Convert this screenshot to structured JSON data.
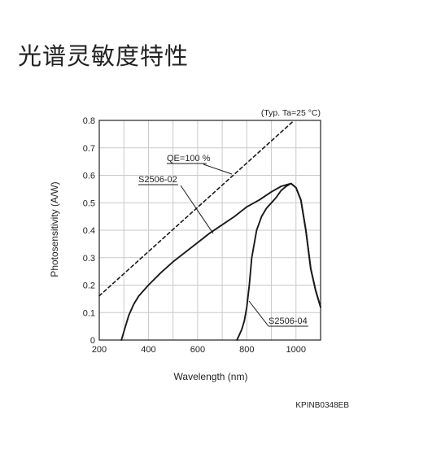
{
  "page": {
    "title": "光谱灵敏度特性",
    "figure_code": "KPINB0348EB"
  },
  "chart_data": {
    "type": "line",
    "title": "",
    "condition": "(Typ. Ta=25 °C)",
    "xlabel": "Wavelength (nm)",
    "ylabel": "Photosensitivity (A/W)",
    "xlim": [
      200,
      1100
    ],
    "ylim": [
      0,
      0.8
    ],
    "x_ticks": [
      200,
      400,
      600,
      800,
      1000
    ],
    "y_ticks": [
      0,
      0.1,
      0.2,
      0.3,
      0.4,
      0.5,
      0.6,
      0.7,
      0.8
    ],
    "grid": true,
    "legend": "none",
    "series": [
      {
        "name": "QE=100 %",
        "style": "dashed",
        "x": [
          200,
          1000
        ],
        "y": [
          0.161,
          0.806
        ]
      },
      {
        "name": "S2506-02",
        "style": "solid",
        "x": [
          290,
          300,
          310,
          320,
          340,
          360,
          380,
          400,
          450,
          500,
          550,
          600,
          650,
          700,
          750,
          800,
          850,
          900,
          940,
          960,
          980,
          1000,
          1020,
          1040,
          1060,
          1080,
          1100
        ],
        "y": [
          0.0,
          0.03,
          0.06,
          0.09,
          0.13,
          0.16,
          0.18,
          0.2,
          0.245,
          0.285,
          0.32,
          0.355,
          0.39,
          0.42,
          0.45,
          0.485,
          0.51,
          0.54,
          0.56,
          0.565,
          0.57,
          0.555,
          0.51,
          0.4,
          0.26,
          0.18,
          0.12
        ]
      },
      {
        "name": "S2506-04",
        "style": "solid",
        "x": [
          760,
          770,
          780,
          790,
          800,
          810,
          820,
          840,
          860,
          880,
          900,
          920,
          940,
          960,
          980,
          1000,
          1020,
          1040,
          1060,
          1080,
          1100
        ],
        "y": [
          0.0,
          0.02,
          0.04,
          0.07,
          0.12,
          0.2,
          0.3,
          0.4,
          0.45,
          0.48,
          0.5,
          0.52,
          0.545,
          0.56,
          0.57,
          0.555,
          0.51,
          0.4,
          0.26,
          0.18,
          0.12
        ]
      }
    ],
    "annotations": [
      {
        "text": "QE=100 %",
        "series": 0
      },
      {
        "text": "S2506-02",
        "series": 1
      },
      {
        "text": "S2506-04",
        "series": 2
      }
    ]
  }
}
